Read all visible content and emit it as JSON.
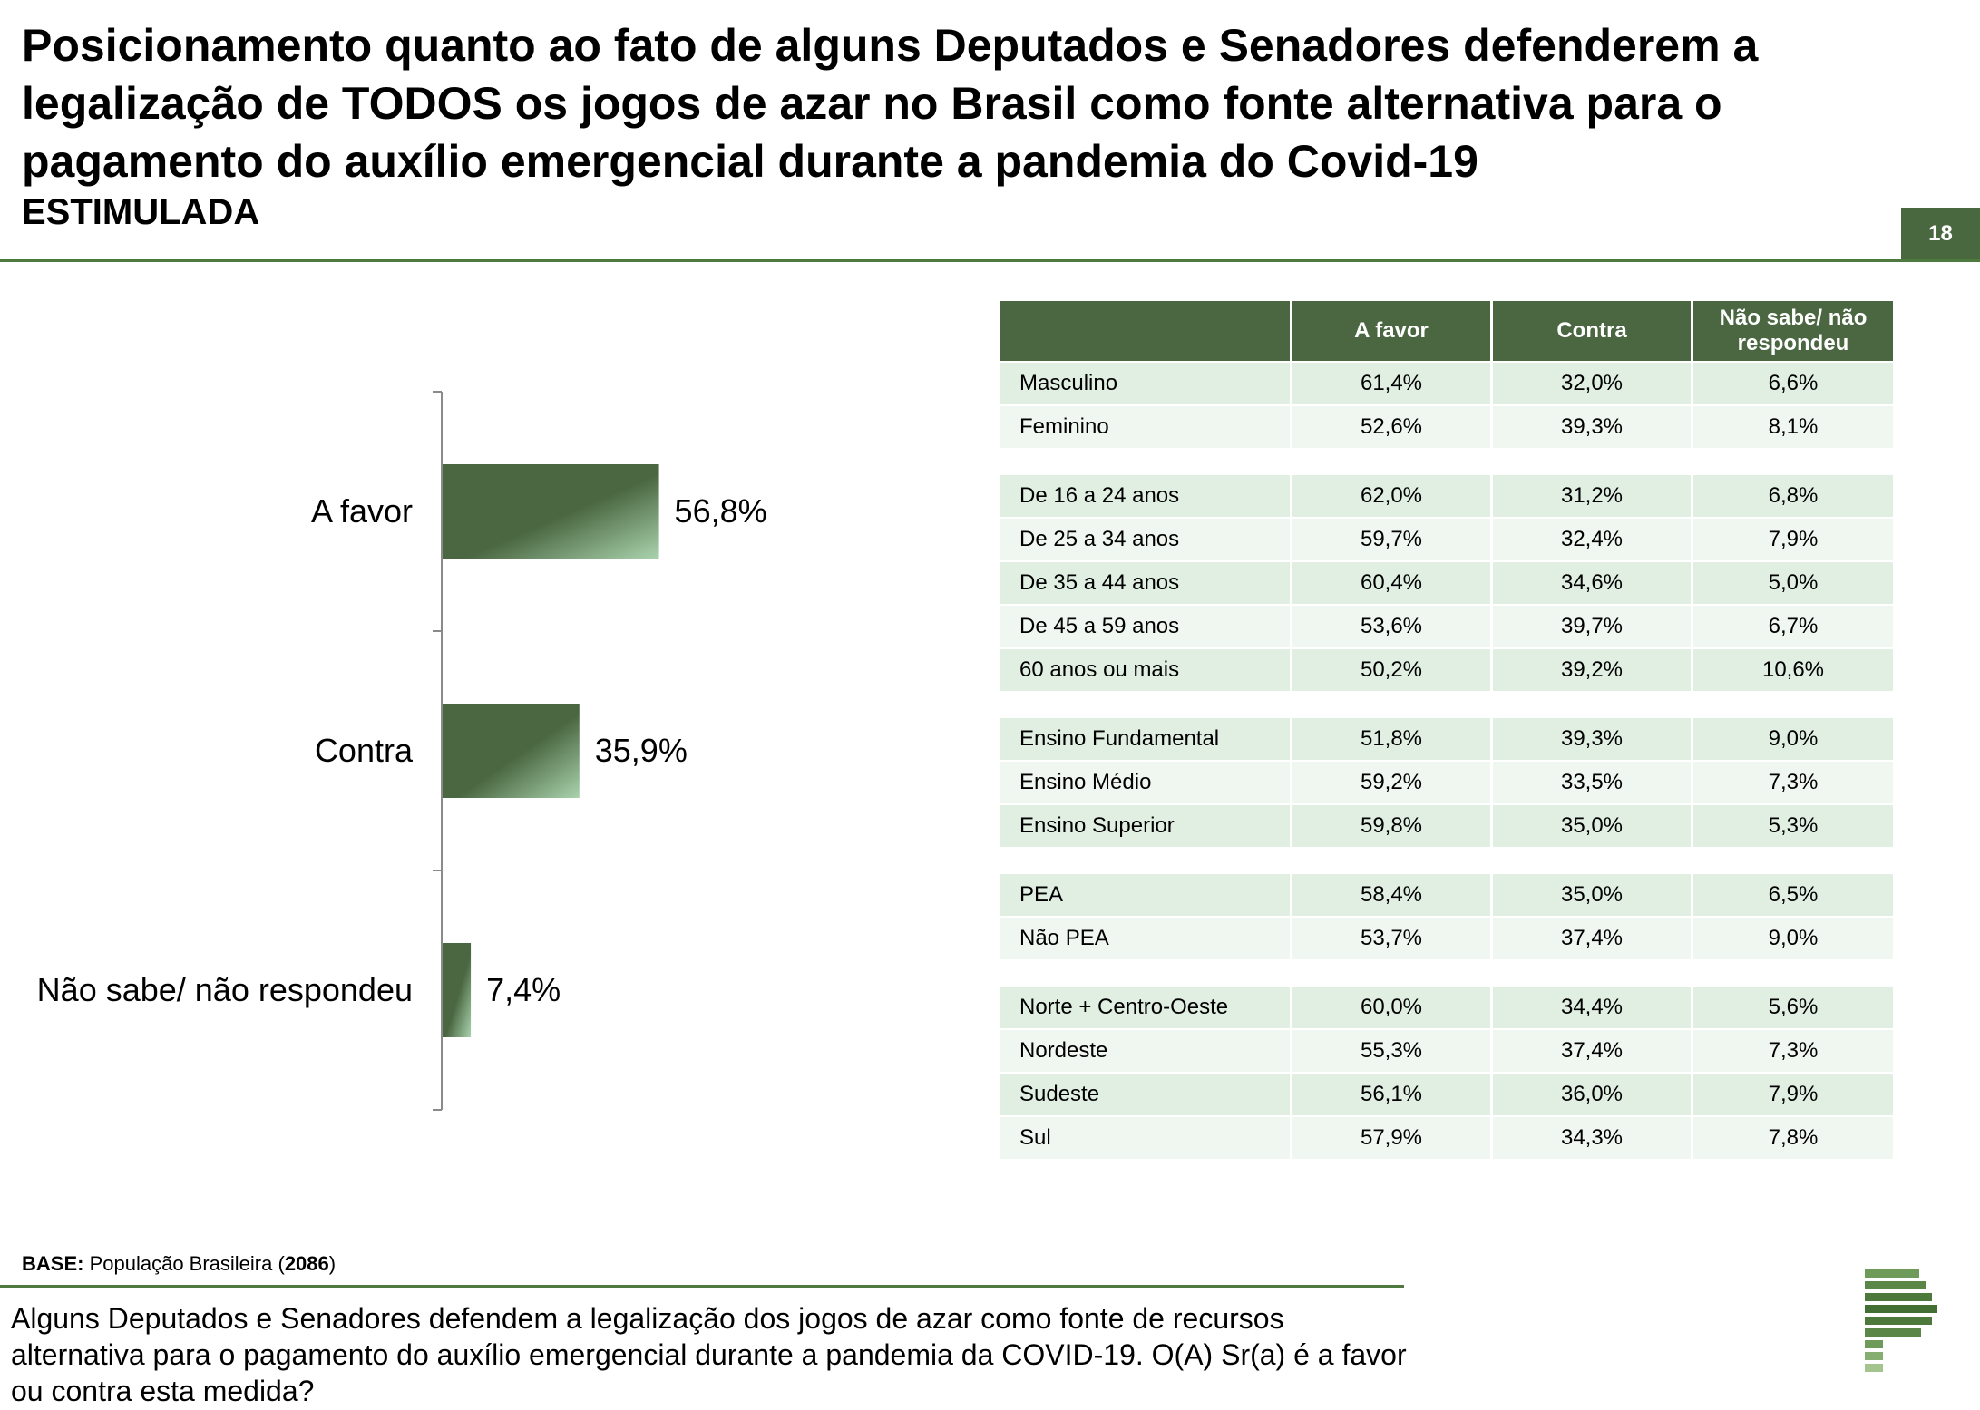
{
  "header": {
    "title": "Posicionamento quanto ao fato de alguns Deputados e Senadores defenderem a legalização de TODOS os jogos de azar no Brasil como fonte alternativa para o pagamento do auxílio emergencial durante a pandemia do Covid-19",
    "subtitle": "ESTIMULADA",
    "page_number": "18"
  },
  "chart_data": {
    "type": "bar",
    "orientation": "horizontal",
    "categories": [
      "A favor",
      "Contra",
      "Não sabe/ não respondeu"
    ],
    "values": [
      56.8,
      35.9,
      7.4
    ],
    "value_labels": [
      "56,8%",
      "35,9%",
      "7,4%"
    ],
    "unit": "%",
    "xlim": [
      0,
      100
    ],
    "grid": false,
    "legend": "none",
    "bar_color": "#4a6741"
  },
  "table": {
    "headers": [
      "",
      "A favor",
      "Contra",
      "Não sabe/ não respondeu"
    ],
    "groups": [
      [
        [
          "Masculino",
          "61,4%",
          "32,0%",
          "6,6%"
        ],
        [
          "Feminino",
          "52,6%",
          "39,3%",
          "8,1%"
        ]
      ],
      [
        [
          "De 16 a 24 anos",
          "62,0%",
          "31,2%",
          "6,8%"
        ],
        [
          "De 25 a 34 anos",
          "59,7%",
          "32,4%",
          "7,9%"
        ],
        [
          "De 35 a 44 anos",
          "60,4%",
          "34,6%",
          "5,0%"
        ],
        [
          "De 45 a 59 anos",
          "53,6%",
          "39,7%",
          "6,7%"
        ],
        [
          "60 anos ou mais",
          "50,2%",
          "39,2%",
          "10,6%"
        ]
      ],
      [
        [
          "Ensino Fundamental",
          "51,8%",
          "39,3%",
          "9,0%"
        ],
        [
          "Ensino Médio",
          "59,2%",
          "33,5%",
          "7,3%"
        ],
        [
          "Ensino Superior",
          "59,8%",
          "35,0%",
          "5,3%"
        ]
      ],
      [
        [
          "PEA",
          "58,4%",
          "35,0%",
          "6,5%"
        ],
        [
          "Não PEA",
          "53,7%",
          "37,4%",
          "9,0%"
        ]
      ],
      [
        [
          "Norte + Centro-Oeste",
          "60,0%",
          "34,4%",
          "5,6%"
        ],
        [
          "Nordeste",
          "55,3%",
          "37,4%",
          "7,3%"
        ],
        [
          "Sudeste",
          "56,1%",
          "36,0%",
          "7,9%"
        ],
        [
          "Sul",
          "57,9%",
          "34,3%",
          "7,8%"
        ]
      ]
    ]
  },
  "footer": {
    "base_label": "BASE:",
    "base_text": "População Brasileira",
    "base_count": "2086",
    "question": "Alguns Deputados e Senadores defendem a legalização dos jogos de azar como fonte de recursos alternativa para o pagamento do auxílio emergencial durante a pandemia da COVID-19. O(A) Sr(a) é a favor ou contra esta medida?"
  },
  "colors": {
    "accent": "#4a6741",
    "rule": "#4e7a3f",
    "row_alt_1": "#e1efe3",
    "row_alt_2": "#f0f6f0"
  }
}
